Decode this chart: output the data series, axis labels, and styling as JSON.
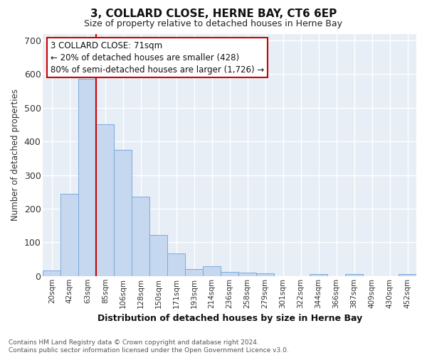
{
  "title": "3, COLLARD CLOSE, HERNE BAY, CT6 6EP",
  "subtitle": "Size of property relative to detached houses in Herne Bay",
  "xlabel": "Distribution of detached houses by size in Herne Bay",
  "ylabel": "Number of detached properties",
  "bar_color": "#c5d8f0",
  "bar_edge_color": "#7aaadd",
  "background_color": "#e8eef6",
  "grid_color": "#ffffff",
  "categories": [
    "20sqm",
    "42sqm",
    "63sqm",
    "85sqm",
    "106sqm",
    "128sqm",
    "150sqm",
    "171sqm",
    "193sqm",
    "214sqm",
    "236sqm",
    "258sqm",
    "279sqm",
    "301sqm",
    "322sqm",
    "344sqm",
    "366sqm",
    "387sqm",
    "409sqm",
    "430sqm",
    "452sqm"
  ],
  "values": [
    16,
    245,
    585,
    450,
    375,
    235,
    122,
    68,
    20,
    30,
    12,
    10,
    8,
    0,
    0,
    6,
    0,
    5,
    0,
    0,
    5
  ],
  "ylim": [
    0,
    720
  ],
  "yticks": [
    0,
    100,
    200,
    300,
    400,
    500,
    600,
    700
  ],
  "red_line_index": 2.5,
  "annotation_line1": "3 COLLARD CLOSE: 71sqm",
  "annotation_line2": "← 20% of detached houses are smaller (428)",
  "annotation_line3": "80% of semi-detached houses are larger (1,726) →",
  "annotation_box_color": "#ffffff",
  "annotation_box_edge": "#cc0000",
  "property_line_color": "#cc0000",
  "fig_facecolor": "#ffffff",
  "footnote": "Contains HM Land Registry data © Crown copyright and database right 2024.\nContains public sector information licensed under the Open Government Licence v3.0."
}
